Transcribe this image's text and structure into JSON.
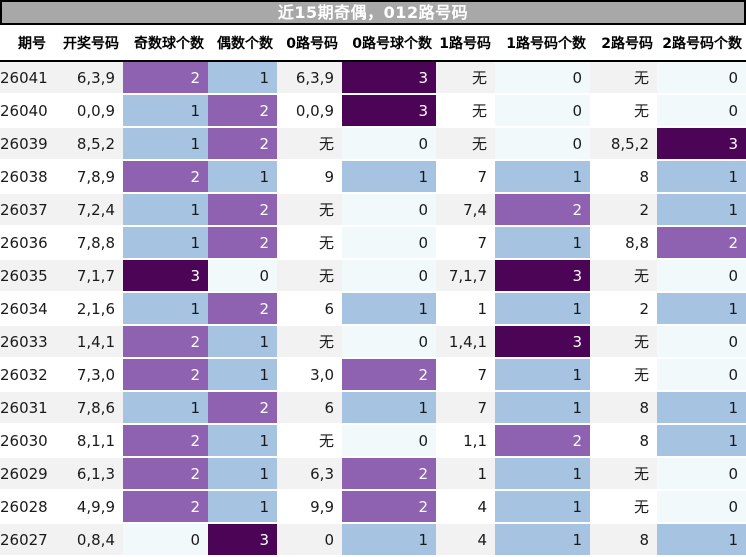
{
  "chart_data": {
    "type": "table",
    "title": "近15期奇偶，012路号码",
    "columns": [
      "期号",
      "开奖号码",
      "奇数球个数",
      "偶数个数",
      "0路号码",
      "0路号球个数",
      "1路号码",
      "1路号码个数",
      "2路号码",
      "2路号码个数"
    ],
    "rows": [
      [
        "26041",
        "6,3,9",
        2,
        1,
        "6,3,9",
        3,
        "无",
        0,
        "无",
        0
      ],
      [
        "26040",
        "0,0,9",
        1,
        2,
        "0,0,9",
        3,
        "无",
        0,
        "无",
        0
      ],
      [
        "26039",
        "8,5,2",
        1,
        2,
        "无",
        0,
        "无",
        0,
        "8,5,2",
        3
      ],
      [
        "26038",
        "7,8,9",
        2,
        1,
        "9",
        1,
        "7",
        1,
        "8",
        1
      ],
      [
        "26037",
        "7,2,4",
        1,
        2,
        "无",
        0,
        "7,4",
        2,
        "2",
        1
      ],
      [
        "26036",
        "7,8,8",
        1,
        2,
        "无",
        0,
        "7",
        1,
        "8,8",
        2
      ],
      [
        "26035",
        "7,1,7",
        3,
        0,
        "无",
        0,
        "7,1,7",
        3,
        "无",
        0
      ],
      [
        "26034",
        "2,1,6",
        1,
        2,
        "6",
        1,
        "1",
        1,
        "2",
        1
      ],
      [
        "26033",
        "1,4,1",
        2,
        1,
        "无",
        0,
        "1,4,1",
        3,
        "无",
        0
      ],
      [
        "26032",
        "7,3,0",
        2,
        1,
        "3,0",
        2,
        "7",
        1,
        "无",
        0
      ],
      [
        "26031",
        "7,8,6",
        1,
        2,
        "6",
        1,
        "7",
        1,
        "8",
        1
      ],
      [
        "26030",
        "8,1,1",
        2,
        1,
        "无",
        0,
        "1,1",
        2,
        "8",
        1
      ],
      [
        "26029",
        "6,1,3",
        2,
        1,
        "6,3",
        2,
        "1",
        1,
        "无",
        0
      ],
      [
        "26028",
        "4,9,9",
        2,
        1,
        "9,9",
        2,
        "4",
        1,
        "无",
        0
      ],
      [
        "26027",
        "0,8,4",
        0,
        3,
        "0",
        1,
        "4",
        1,
        "8",
        1
      ]
    ],
    "heat_column_indexes": [
      2,
      3,
      5,
      7,
      9
    ],
    "heat_colorscale": {
      "0": "#f2f9fb",
      "1": "#a6c4e2",
      "2": "#8e61b1",
      "3": "#4c0556"
    },
    "none_label": "无"
  },
  "colors": {
    "title_bar_bg": "#a8a8a8",
    "title_text": "#ffffff",
    "border": "#000000",
    "row_odd": "#f2f2f2",
    "row_even": "#ffffff",
    "text": "#1a1a1a"
  }
}
